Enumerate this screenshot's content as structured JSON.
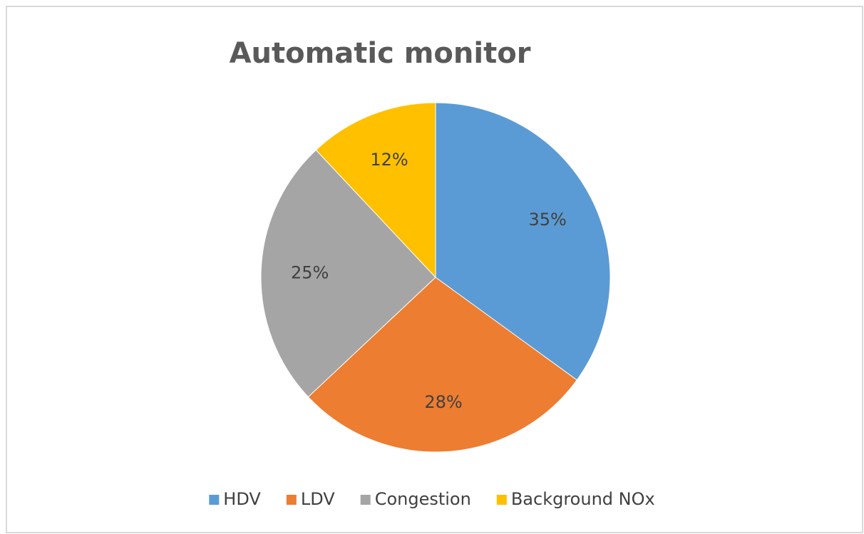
{
  "chart_data": {
    "type": "pie",
    "title": "Automatic monitor",
    "categories": [
      "HDV",
      "LDV",
      "Congestion",
      "Background NOx"
    ],
    "values": [
      35,
      28,
      25,
      12
    ],
    "value_labels": [
      "35%",
      "28%",
      "25%",
      "12%"
    ],
    "colors": [
      "#5b9bd5",
      "#ed7d31",
      "#a5a5a5",
      "#ffc000"
    ],
    "legend": "bottom"
  }
}
